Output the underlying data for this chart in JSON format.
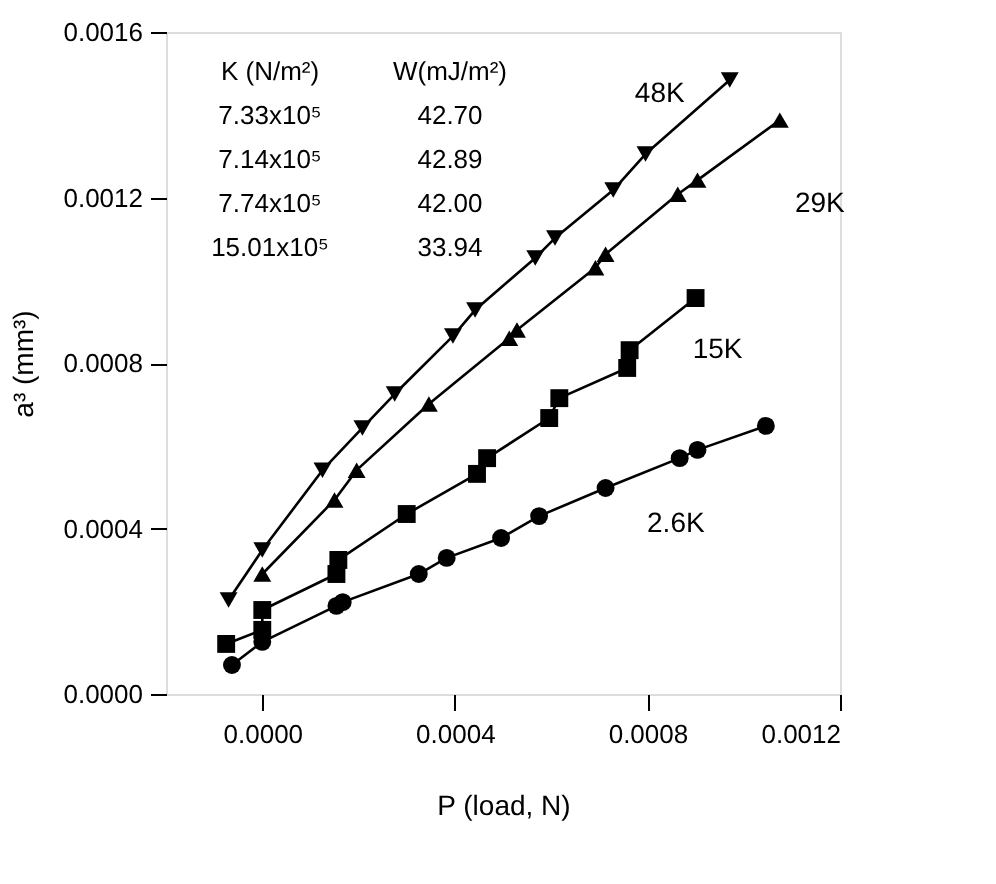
{
  "chart_data": {
    "type": "line",
    "xlabel": "P (load, N)",
    "ylabel": "a³ (mm³)",
    "xlim": [
      -0.0002,
      0.0012
    ],
    "ylim": [
      0,
      0.0016
    ],
    "xticks": [
      {
        "value": 0,
        "label": "0.0000"
      },
      {
        "value": 0.0004,
        "label": "0.0004"
      },
      {
        "value": 0.0008,
        "label": "0.0008"
      },
      {
        "value": 0.0012,
        "label": "0.0012"
      }
    ],
    "yticks": [
      {
        "value": 0,
        "label": "0.0000"
      },
      {
        "value": 0.0004,
        "label": "0.0004"
      },
      {
        "value": 0.0008,
        "label": "0.0008"
      },
      {
        "value": 0.0012,
        "label": "0.0012"
      },
      {
        "value": 0.0016,
        "label": "0.0016"
      }
    ],
    "grid": false,
    "line_style": "solid",
    "series": [
      {
        "color": "#000000",
        "marker": "triangle-down",
        "x": [
          -7e-05,
          0.0,
          0.000125,
          0.000208,
          0.000275,
          0.000396,
          0.000442,
          0.000567,
          0.000608,
          0.000729,
          0.000796,
          0.000971
        ],
        "values": [
          0.000227,
          0.000348,
          0.000541,
          0.000643,
          0.000725,
          0.000865,
          0.000928,
          0.001054,
          0.001102,
          0.001218,
          0.001305,
          0.001484
        ]
      },
      {
        "color": "#000000",
        "marker": "triangle",
        "x": [
          0.0,
          0.00015,
          0.000196,
          0.000346,
          0.000513,
          0.000529,
          0.000692,
          0.000713,
          0.000863,
          0.000904,
          0.001075
        ],
        "values": [
          0.00029,
          0.000469,
          0.000541,
          0.000701,
          0.00086,
          0.00088,
          0.00103,
          0.001063,
          0.001208,
          0.001242,
          0.001387
        ]
      },
      {
        "color": "#000000",
        "marker": "square",
        "x": [
          -7.5e-05,
          0.0,
          0.0,
          0.000154,
          0.000158,
          0.0003,
          0.000446,
          0.000467,
          0.000596,
          0.000617,
          0.000758,
          0.000763,
          0.0009
        ],
        "values": [
          0.000121,
          0.000155,
          0.000203,
          0.00029,
          0.000324,
          0.000435,
          0.000532,
          0.00057,
          0.000667,
          0.000715,
          0.000788,
          0.000831,
          0.000957
        ]
      },
      {
        "color": "#000000",
        "marker": "circle",
        "x": [
          -6.3e-05,
          0.0,
          0.000154,
          0.000167,
          0.000325,
          0.000383,
          0.000496,
          0.000575,
          0.000713,
          0.000867,
          0.000904,
          0.001046
        ],
        "values": [
          7e-05,
          0.000126,
          0.000213,
          0.000222,
          0.00029,
          0.000329,
          0.000377,
          0.00043,
          0.000498,
          0.00057,
          0.00059,
          0.000648
        ]
      }
    ],
    "annotations": [
      "48K",
      "29K",
      "15K",
      "2.6K",
      "K (N/m²)",
      "W(mJ/m²)",
      "7.33x10⁵",
      "42.70",
      "7.14x10⁵",
      "42.89",
      "7.74x10⁵",
      "42.00",
      "15.01x10⁵",
      "33.94"
    ]
  }
}
